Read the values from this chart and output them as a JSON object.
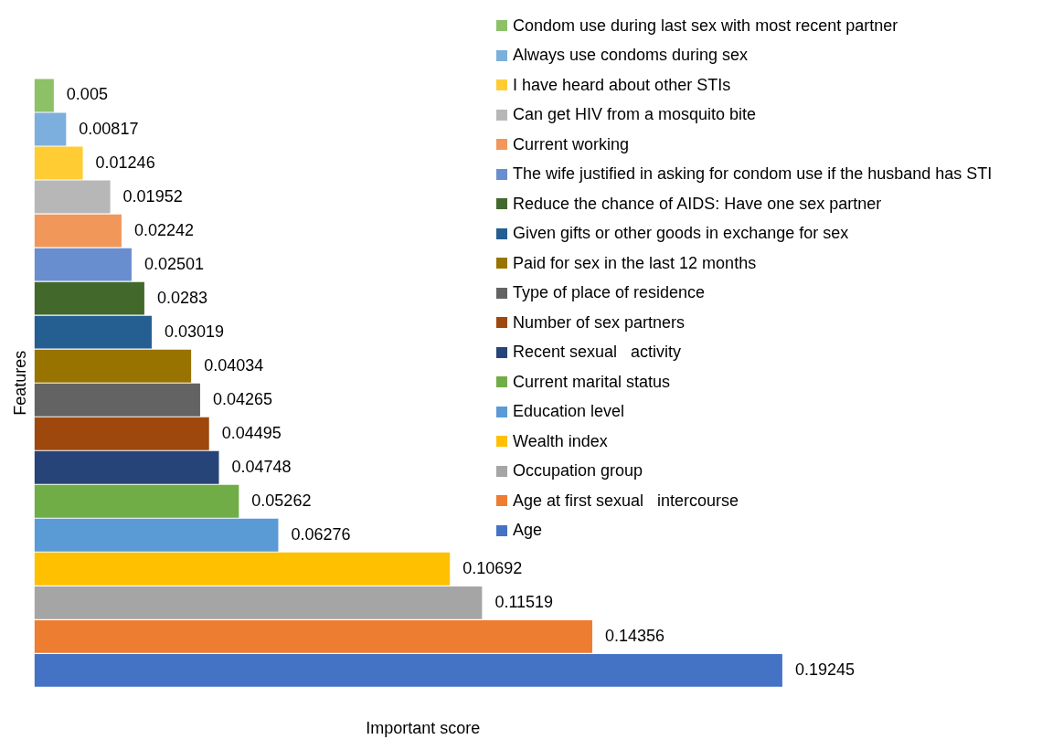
{
  "chart_data": {
    "type": "bar",
    "orientation": "horizontal",
    "stacked": true,
    "xlabel": "Important score",
    "ylabel": "Features",
    "categories": [
      null,
      null,
      null,
      null,
      null,
      null,
      null,
      null,
      null,
      null,
      null,
      null,
      null,
      null,
      null,
      null,
      null,
      null
    ],
    "tick_labels": false,
    "data_labels": true,
    "legend": "top right",
    "series": [
      {
        "name": "Condom use during last sex with most recent partner",
        "color": "#8cc168",
        "values": [
          0.005,
          null,
          null,
          null,
          null,
          null,
          null,
          null,
          null,
          null,
          null,
          null,
          null,
          null,
          null,
          null,
          null,
          null
        ]
      },
      {
        "name": "Always use condoms during sex",
        "color": "#7cafdd",
        "values": [
          null,
          0.00817,
          null,
          null,
          null,
          null,
          null,
          null,
          null,
          null,
          null,
          null,
          null,
          null,
          null,
          null,
          null,
          null
        ]
      },
      {
        "name": "I have heard about other STIs",
        "color": "#ffcd33",
        "values": [
          null,
          null,
          0.01246,
          null,
          null,
          null,
          null,
          null,
          null,
          null,
          null,
          null,
          null,
          null,
          null,
          null,
          null,
          null
        ]
      },
      {
        "name": "Can get HIV from a mosquito bite",
        "color": "#b7b7b7",
        "values": [
          null,
          null,
          null,
          0.01952,
          null,
          null,
          null,
          null,
          null,
          null,
          null,
          null,
          null,
          null,
          null,
          null,
          null,
          null
        ]
      },
      {
        "name": "Current working",
        "color": "#f1975a",
        "values": [
          null,
          null,
          null,
          null,
          0.02242,
          null,
          null,
          null,
          null,
          null,
          null,
          null,
          null,
          null,
          null,
          null,
          null,
          null
        ]
      },
      {
        "name": "The wife justified in asking for condom use if the husband has STI",
        "color": "#698ed0",
        "values": [
          null,
          null,
          null,
          null,
          null,
          0.02501,
          null,
          null,
          null,
          null,
          null,
          null,
          null,
          null,
          null,
          null,
          null,
          null
        ]
      },
      {
        "name": "Reduce the chance of AIDS: Have one sex partner",
        "color": "#43682b",
        "values": [
          null,
          null,
          null,
          null,
          null,
          null,
          0.0283,
          null,
          null,
          null,
          null,
          null,
          null,
          null,
          null,
          null,
          null,
          null
        ]
      },
      {
        "name": "Given gifts or other goods in exchange for sex",
        "color": "#255e91",
        "values": [
          null,
          null,
          null,
          null,
          null,
          null,
          null,
          0.03019,
          null,
          null,
          null,
          null,
          null,
          null,
          null,
          null,
          null,
          null
        ]
      },
      {
        "name": "Paid for sex in the last 12 months",
        "color": "#997300",
        "values": [
          null,
          null,
          null,
          null,
          null,
          null,
          null,
          null,
          0.04034,
          null,
          null,
          null,
          null,
          null,
          null,
          null,
          null,
          null
        ]
      },
      {
        "name": "Type of place of residence",
        "color": "#636363",
        "values": [
          null,
          null,
          null,
          null,
          null,
          null,
          null,
          null,
          null,
          0.04265,
          null,
          null,
          null,
          null,
          null,
          null,
          null,
          null
        ]
      },
      {
        "name": "Number of sex partners",
        "color": "#9e480e",
        "values": [
          null,
          null,
          null,
          null,
          null,
          null,
          null,
          null,
          null,
          null,
          0.04495,
          null,
          null,
          null,
          null,
          null,
          null,
          null
        ]
      },
      {
        "name": "Recent sexual   activity",
        "color": "#264478",
        "values": [
          null,
          null,
          null,
          null,
          null,
          null,
          null,
          null,
          null,
          null,
          null,
          0.04748,
          null,
          null,
          null,
          null,
          null,
          null
        ]
      },
      {
        "name": "Current marital status",
        "color": "#70ad47",
        "values": [
          null,
          null,
          null,
          null,
          null,
          null,
          null,
          null,
          null,
          null,
          null,
          null,
          0.05262,
          null,
          null,
          null,
          null,
          null
        ]
      },
      {
        "name": "Education level",
        "color": "#5b9bd5",
        "values": [
          null,
          null,
          null,
          null,
          null,
          null,
          null,
          null,
          null,
          null,
          null,
          null,
          null,
          0.06276,
          null,
          null,
          null,
          null
        ]
      },
      {
        "name": "Wealth index",
        "color": "#ffc000",
        "values": [
          null,
          null,
          null,
          null,
          null,
          null,
          null,
          null,
          null,
          null,
          null,
          null,
          null,
          null,
          0.10692,
          null,
          null,
          null
        ]
      },
      {
        "name": "Occupation group",
        "color": "#a5a5a5",
        "values": [
          null,
          null,
          null,
          null,
          null,
          null,
          null,
          null,
          null,
          null,
          null,
          null,
          null,
          null,
          null,
          0.11519,
          null,
          null
        ]
      },
      {
        "name": "Age at first sexual   intercourse",
        "color": "#ed7d31",
        "values": [
          null,
          null,
          null,
          null,
          null,
          null,
          null,
          null,
          null,
          null,
          null,
          null,
          null,
          null,
          null,
          null,
          0.14356,
          null
        ]
      },
      {
        "name": "Age",
        "color": "#4472c4",
        "values": [
          null,
          null,
          null,
          null,
          null,
          null,
          null,
          null,
          null,
          null,
          null,
          null,
          null,
          null,
          null,
          null,
          null,
          0.19245
        ]
      }
    ]
  }
}
